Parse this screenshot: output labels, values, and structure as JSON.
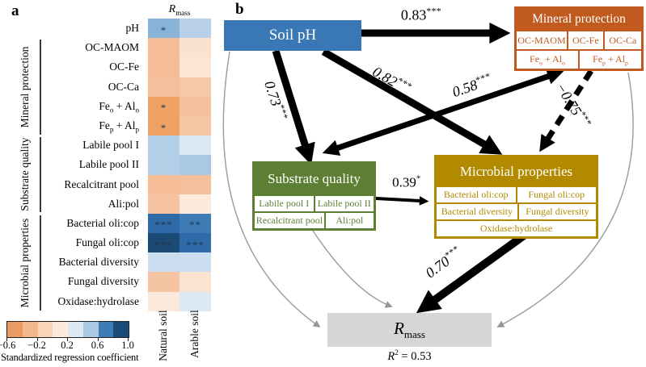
{
  "panel_a": {
    "label": "a",
    "col_header": {
      "main": "R",
      "sub": "mass"
    },
    "columns": [
      "Natural soil",
      "Arable soil"
    ],
    "categories": [
      {
        "label": "Mineral protection"
      },
      {
        "label": "Substrate quality"
      },
      {
        "label": "Microbial properties"
      }
    ],
    "colorbar": {
      "segments": [
        "#ec9a63",
        "#f3b78c",
        "#f9d4b8",
        "#fdeadd",
        "#dce8f3",
        "#a9c8e3",
        "#3e7cb6",
        "#1c4a79"
      ],
      "ticks": [
        "−0.6",
        "−0.2",
        "0.2",
        "0.6",
        "1.0"
      ],
      "caption": "Standardized regression coefficient"
    },
    "chart_data": {
      "type": "heatmap",
      "title": "Rmass standardized regression coefficients",
      "columns": [
        "Natural soil",
        "Arable soil"
      ],
      "value_range": [
        -0.6,
        1.0
      ],
      "rows": [
        {
          "label": [
            [
              "pH",
              0
            ]
          ],
          "natural": {
            "color": "#8ab3d9",
            "stars": "*"
          },
          "arable": {
            "color": "#b9d1e8",
            "stars": ""
          }
        },
        {
          "label": [
            [
              "OC-MAOM",
              0
            ]
          ],
          "natural": {
            "color": "#f4bd97",
            "stars": ""
          },
          "arable": {
            "color": "#fae2cf",
            "stars": ""
          }
        },
        {
          "label": [
            [
              "OC-Fe",
              0
            ]
          ],
          "natural": {
            "color": "#f4bd97",
            "stars": ""
          },
          "arable": {
            "color": "#fbe6d6",
            "stars": ""
          }
        },
        {
          "label": [
            [
              "OC-Ca",
              0
            ]
          ],
          "natural": {
            "color": "#f4c09c",
            "stars": ""
          },
          "arable": {
            "color": "#f6c8a8",
            "stars": ""
          }
        },
        {
          "label": [
            [
              "Fe",
              0
            ],
            [
              "o",
              1
            ],
            [
              " + Al",
              0
            ],
            [
              "o",
              1
            ]
          ],
          "natural": {
            "color": "#efa263",
            "stars": "*"
          },
          "arable": {
            "color": "#f5c29e",
            "stars": ""
          }
        },
        {
          "label": [
            [
              "Fe",
              0
            ],
            [
              "p",
              1
            ],
            [
              " + Al",
              0
            ],
            [
              "p",
              1
            ]
          ],
          "natural": {
            "color": "#efa263",
            "stars": "*"
          },
          "arable": {
            "color": "#f5c5a4",
            "stars": ""
          }
        },
        {
          "label": [
            [
              "Labile pool I",
              0
            ]
          ],
          "natural": {
            "color": "#b3cfe7",
            "stars": ""
          },
          "arable": {
            "color": "#dbe7f3",
            "stars": ""
          }
        },
        {
          "label": [
            [
              "Labile pool II",
              0
            ]
          ],
          "natural": {
            "color": "#b3cfe7",
            "stars": ""
          },
          "arable": {
            "color": "#a9c8e3",
            "stars": ""
          }
        },
        {
          "label": [
            [
              "Recalcitrant pool",
              0
            ]
          ],
          "natural": {
            "color": "#f4bd97",
            "stars": ""
          },
          "arable": {
            "color": "#f4c09b",
            "stars": ""
          }
        },
        {
          "label": [
            [
              "Ali:pol",
              0
            ]
          ],
          "natural": {
            "color": "#f5c3a1",
            "stars": ""
          },
          "arable": {
            "color": "#fcebdd",
            "stars": ""
          }
        },
        {
          "label": [
            [
              "Bacterial oli:cop",
              0
            ]
          ],
          "natural": {
            "color": "#2f6ba8",
            "stars": "***"
          },
          "arable": {
            "color": "#3f7cb6",
            "stars": "**"
          }
        },
        {
          "label": [
            [
              "Fungal oli:cop",
              0
            ]
          ],
          "natural": {
            "color": "#1b4a74",
            "stars": "***"
          },
          "arable": {
            "color": "#2f6ba8",
            "stars": "***"
          }
        },
        {
          "label": [
            [
              "Bacterial diversity",
              0
            ]
          ],
          "natural": {
            "color": "#cadef0",
            "stars": ""
          },
          "arable": {
            "color": "#cadef0",
            "stars": ""
          }
        },
        {
          "label": [
            [
              "Fungal diversity",
              0
            ]
          ],
          "natural": {
            "color": "#f5c4a2",
            "stars": ""
          },
          "arable": {
            "color": "#fae3d1",
            "stars": ""
          }
        },
        {
          "label": [
            [
              "Oxidase:hydrolase",
              0
            ]
          ],
          "natural": {
            "color": "#fae8db",
            "stars": ""
          },
          "arable": {
            "color": "#dce9f4",
            "stars": ""
          }
        }
      ]
    }
  },
  "panel_b": {
    "label": "b",
    "boxes": {
      "soil_ph": {
        "title": "Soil pH",
        "color": "#3978b5"
      },
      "mineral": {
        "title": "Mineral protection",
        "color": "#c05a1f",
        "row1": [
          "OC-MAOM",
          "OC-Fe",
          "OC-Ca"
        ],
        "row2": [
          {
            "a": "Fe",
            "asub": "o",
            "b": " + Al",
            "bsub": "o"
          },
          {
            "a": "Fe",
            "asub": "p",
            "b": " + Al",
            "bsub": "p"
          }
        ]
      },
      "substrate": {
        "title": "Substrate quality",
        "color": "#5c7f33",
        "row1": [
          "Labile pool I",
          "Labile pool II"
        ],
        "row2": [
          "Recalcitrant pool",
          "Ali:pol"
        ]
      },
      "microbial": {
        "title": "Microbial properties",
        "color": "#b18a00",
        "row1": [
          "Bacterial oli:cop",
          "Fungal oli:cop"
        ],
        "row2": [
          "Bacterial diversity",
          "Fungal diversity"
        ],
        "row3": "Oxidase:hydrolase"
      },
      "rmass": {
        "main": "R",
        "sub": "mass",
        "color": "#d6d6d6"
      }
    },
    "r2": {
      "r": "R",
      "sup": "2",
      "rest": " = 0.53"
    },
    "chart_data": {
      "type": "sem-diagram",
      "paths": [
        {
          "from": "Soil pH",
          "to": "Mineral protection",
          "coefficient": 0.83,
          "significance": "***",
          "style": "solid"
        },
        {
          "from": "Soil pH",
          "to": "Substrate quality",
          "coefficient": 0.73,
          "significance": "***",
          "style": "solid"
        },
        {
          "from": "Soil pH",
          "to": "Microbial properties",
          "coefficient": 0.82,
          "significance": "***",
          "style": "solid"
        },
        {
          "from": "Substrate quality",
          "to": "Mineral protection",
          "coefficient": 0.58,
          "significance": "***",
          "style": "solid-double-headed"
        },
        {
          "from": "Mineral protection",
          "to": "Microbial properties",
          "coefficient": -0.75,
          "significance": "***",
          "style": "dashed"
        },
        {
          "from": "Substrate quality",
          "to": "Microbial properties",
          "coefficient": 0.39,
          "significance": "*",
          "style": "solid"
        },
        {
          "from": "Microbial properties",
          "to": "Rmass",
          "coefficient": 0.7,
          "significance": "***",
          "style": "solid"
        },
        {
          "from": "Soil pH",
          "to": "Rmass",
          "style": "gray-nonsignificant"
        },
        {
          "from": "Substrate quality",
          "to": "Rmass",
          "style": "gray-nonsignificant"
        },
        {
          "from": "Mineral protection",
          "to": "Rmass",
          "style": "gray-nonsignificant"
        }
      ],
      "r_squared": 0.53
    },
    "path_labels": [
      {
        "value": "0.83",
        "stars": "***"
      },
      {
        "value": "0.73",
        "stars": "***"
      },
      {
        "value": "0.82",
        "stars": "***"
      },
      {
        "value": "0.58",
        "stars": "***"
      },
      {
        "value": "−0.75",
        "stars": "***"
      },
      {
        "value": "0.39",
        "stars": "*"
      },
      {
        "value": "0.70",
        "stars": "***"
      }
    ]
  }
}
